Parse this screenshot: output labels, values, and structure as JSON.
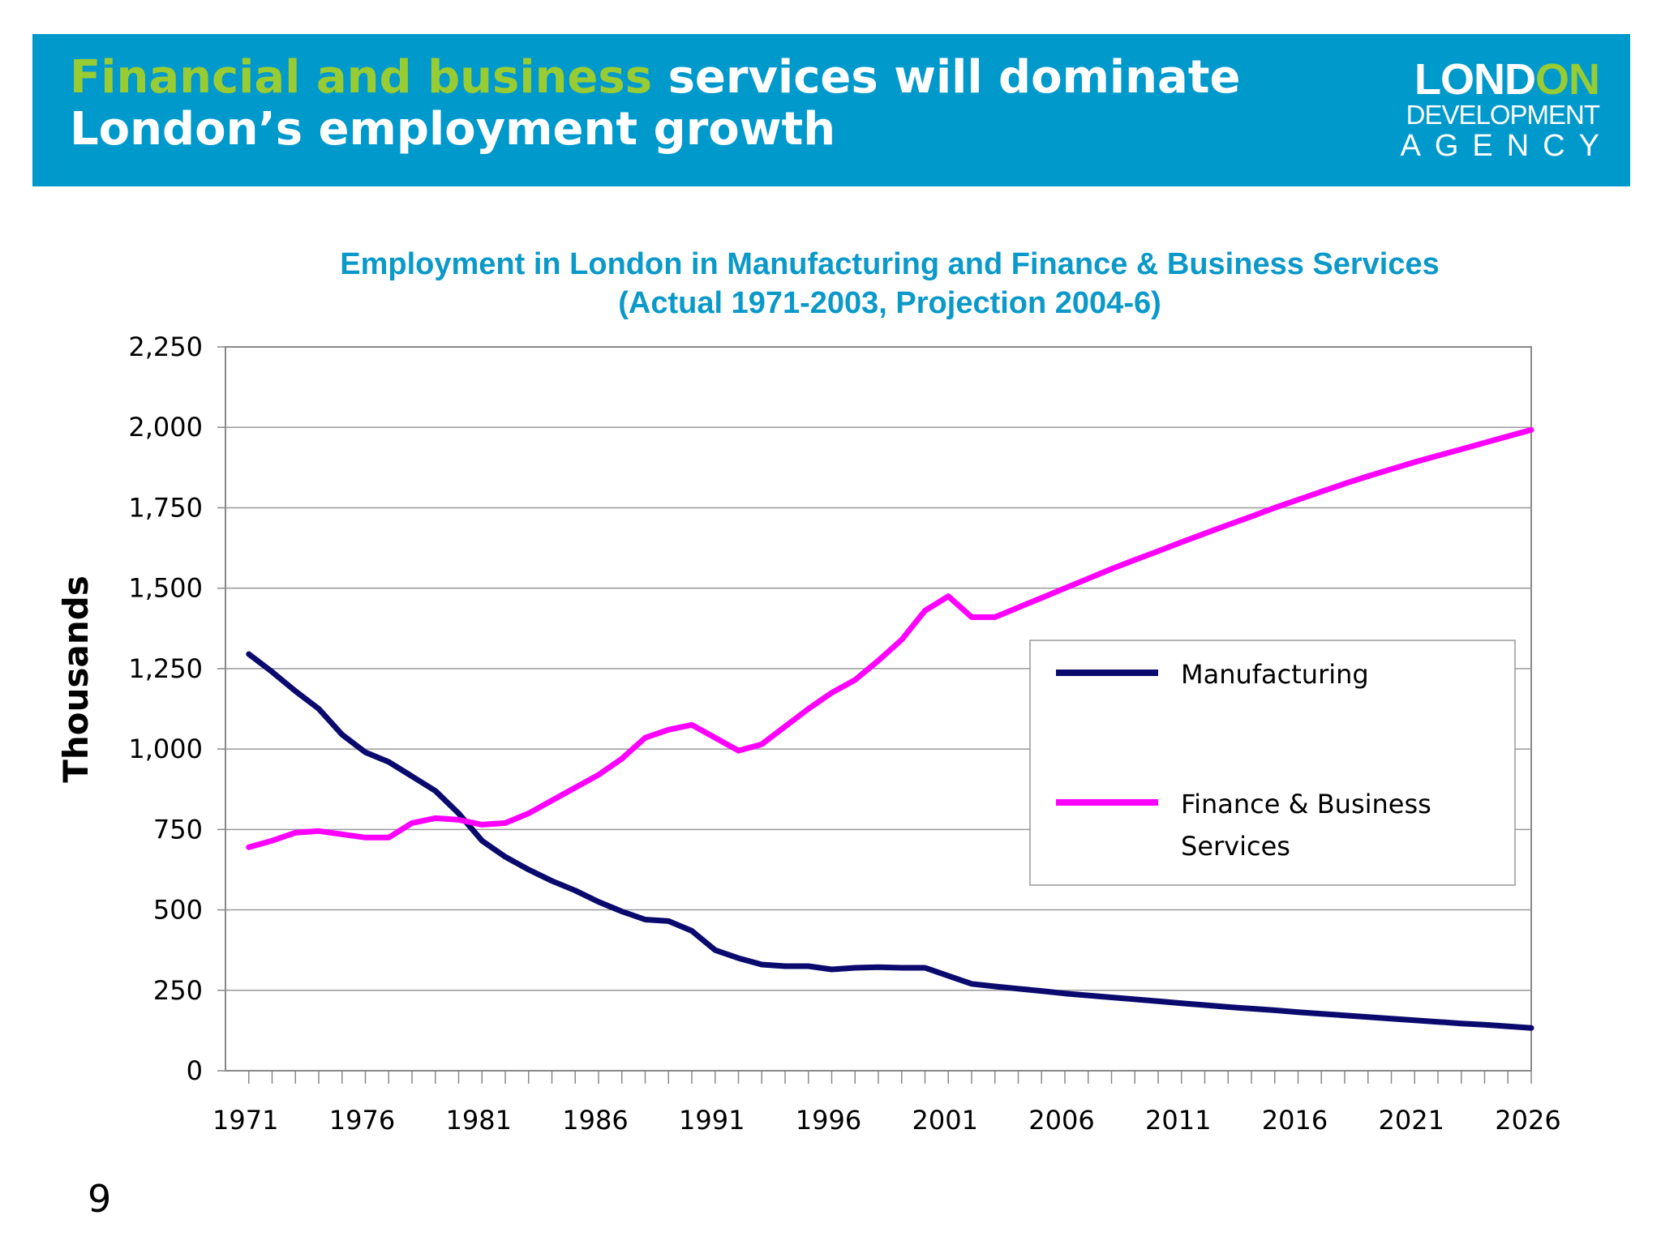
{
  "header": {
    "title_accent": "Financial and business",
    "title_rest_line1": " services will dominate",
    "title_line2": "London’s employment growth",
    "colors": {
      "banner": "#0099cc",
      "accent": "#99cc33",
      "text": "#ffffff"
    }
  },
  "logo": {
    "word_main": "LOND",
    "word_accent": "ON",
    "line2": "DEVELOPMENT",
    "line3": "AGENCY"
  },
  "page_number": "9",
  "chart_data": {
    "type": "line",
    "title": "Employment in London in Manufacturing and Finance & Business Services",
    "subtitle": "(Actual 1971-2003, Projection 2004-6)",
    "xlabel": "",
    "ylabel": "Thousands",
    "xlim": [
      1970,
      2026
    ],
    "ylim": [
      0,
      2250
    ],
    "x_ticks": [
      1971,
      1976,
      1981,
      1986,
      1991,
      1996,
      2001,
      2006,
      2011,
      2016,
      2021,
      2026
    ],
    "y_ticks": [
      0,
      250,
      500,
      750,
      1000,
      1250,
      1500,
      1750,
      2000,
      2250
    ],
    "y_tick_labels": [
      "0",
      "250",
      "500",
      "750",
      "1,000",
      "1,250",
      "1,500",
      "1,750",
      "2,000",
      "2,250"
    ],
    "grid": "horizontal",
    "legend_position": "right",
    "x": [
      1971,
      1972,
      1973,
      1974,
      1975,
      1976,
      1977,
      1978,
      1979,
      1980,
      1981,
      1982,
      1983,
      1984,
      1985,
      1986,
      1987,
      1988,
      1989,
      1990,
      1991,
      1992,
      1993,
      1994,
      1995,
      1996,
      1997,
      1998,
      1999,
      2000,
      2001,
      2002,
      2003,
      2004,
      2005,
      2006,
      2007,
      2008,
      2009,
      2010,
      2011,
      2012,
      2013,
      2014,
      2015,
      2016,
      2017,
      2018,
      2019,
      2020,
      2021,
      2022,
      2023,
      2024,
      2025,
      2026
    ],
    "series": [
      {
        "name": "Manufacturing",
        "color": "#0a0a6e",
        "values": [
          1295,
          1240,
          1180,
          1125,
          1045,
          990,
          960,
          915,
          870,
          800,
          715,
          665,
          625,
          590,
          560,
          525,
          495,
          470,
          465,
          435,
          375,
          350,
          330,
          325,
          325,
          315,
          320,
          322,
          320,
          320,
          295,
          270,
          262,
          255,
          248,
          240,
          234,
          228,
          222,
          216,
          210,
          204,
          198,
          193,
          188,
          182,
          177,
          172,
          167,
          162,
          157,
          152,
          147,
          143,
          138,
          133
        ]
      },
      {
        "name": "Finance & Business Services",
        "color": "#ff00ff",
        "values": [
          695,
          715,
          740,
          745,
          735,
          725,
          725,
          770,
          785,
          780,
          765,
          770,
          800,
          840,
          880,
          920,
          970,
          1035,
          1060,
          1075,
          1035,
          995,
          1015,
          1070,
          1125,
          1175,
          1215,
          1275,
          1340,
          1430,
          1475,
          1410,
          1410,
          1440,
          1470,
          1500,
          1530,
          1560,
          1588,
          1615,
          1643,
          1670,
          1697,
          1723,
          1750,
          1775,
          1800,
          1825,
          1848,
          1870,
          1892,
          1912,
          1932,
          1952,
          1972,
          1992
        ]
      }
    ]
  }
}
